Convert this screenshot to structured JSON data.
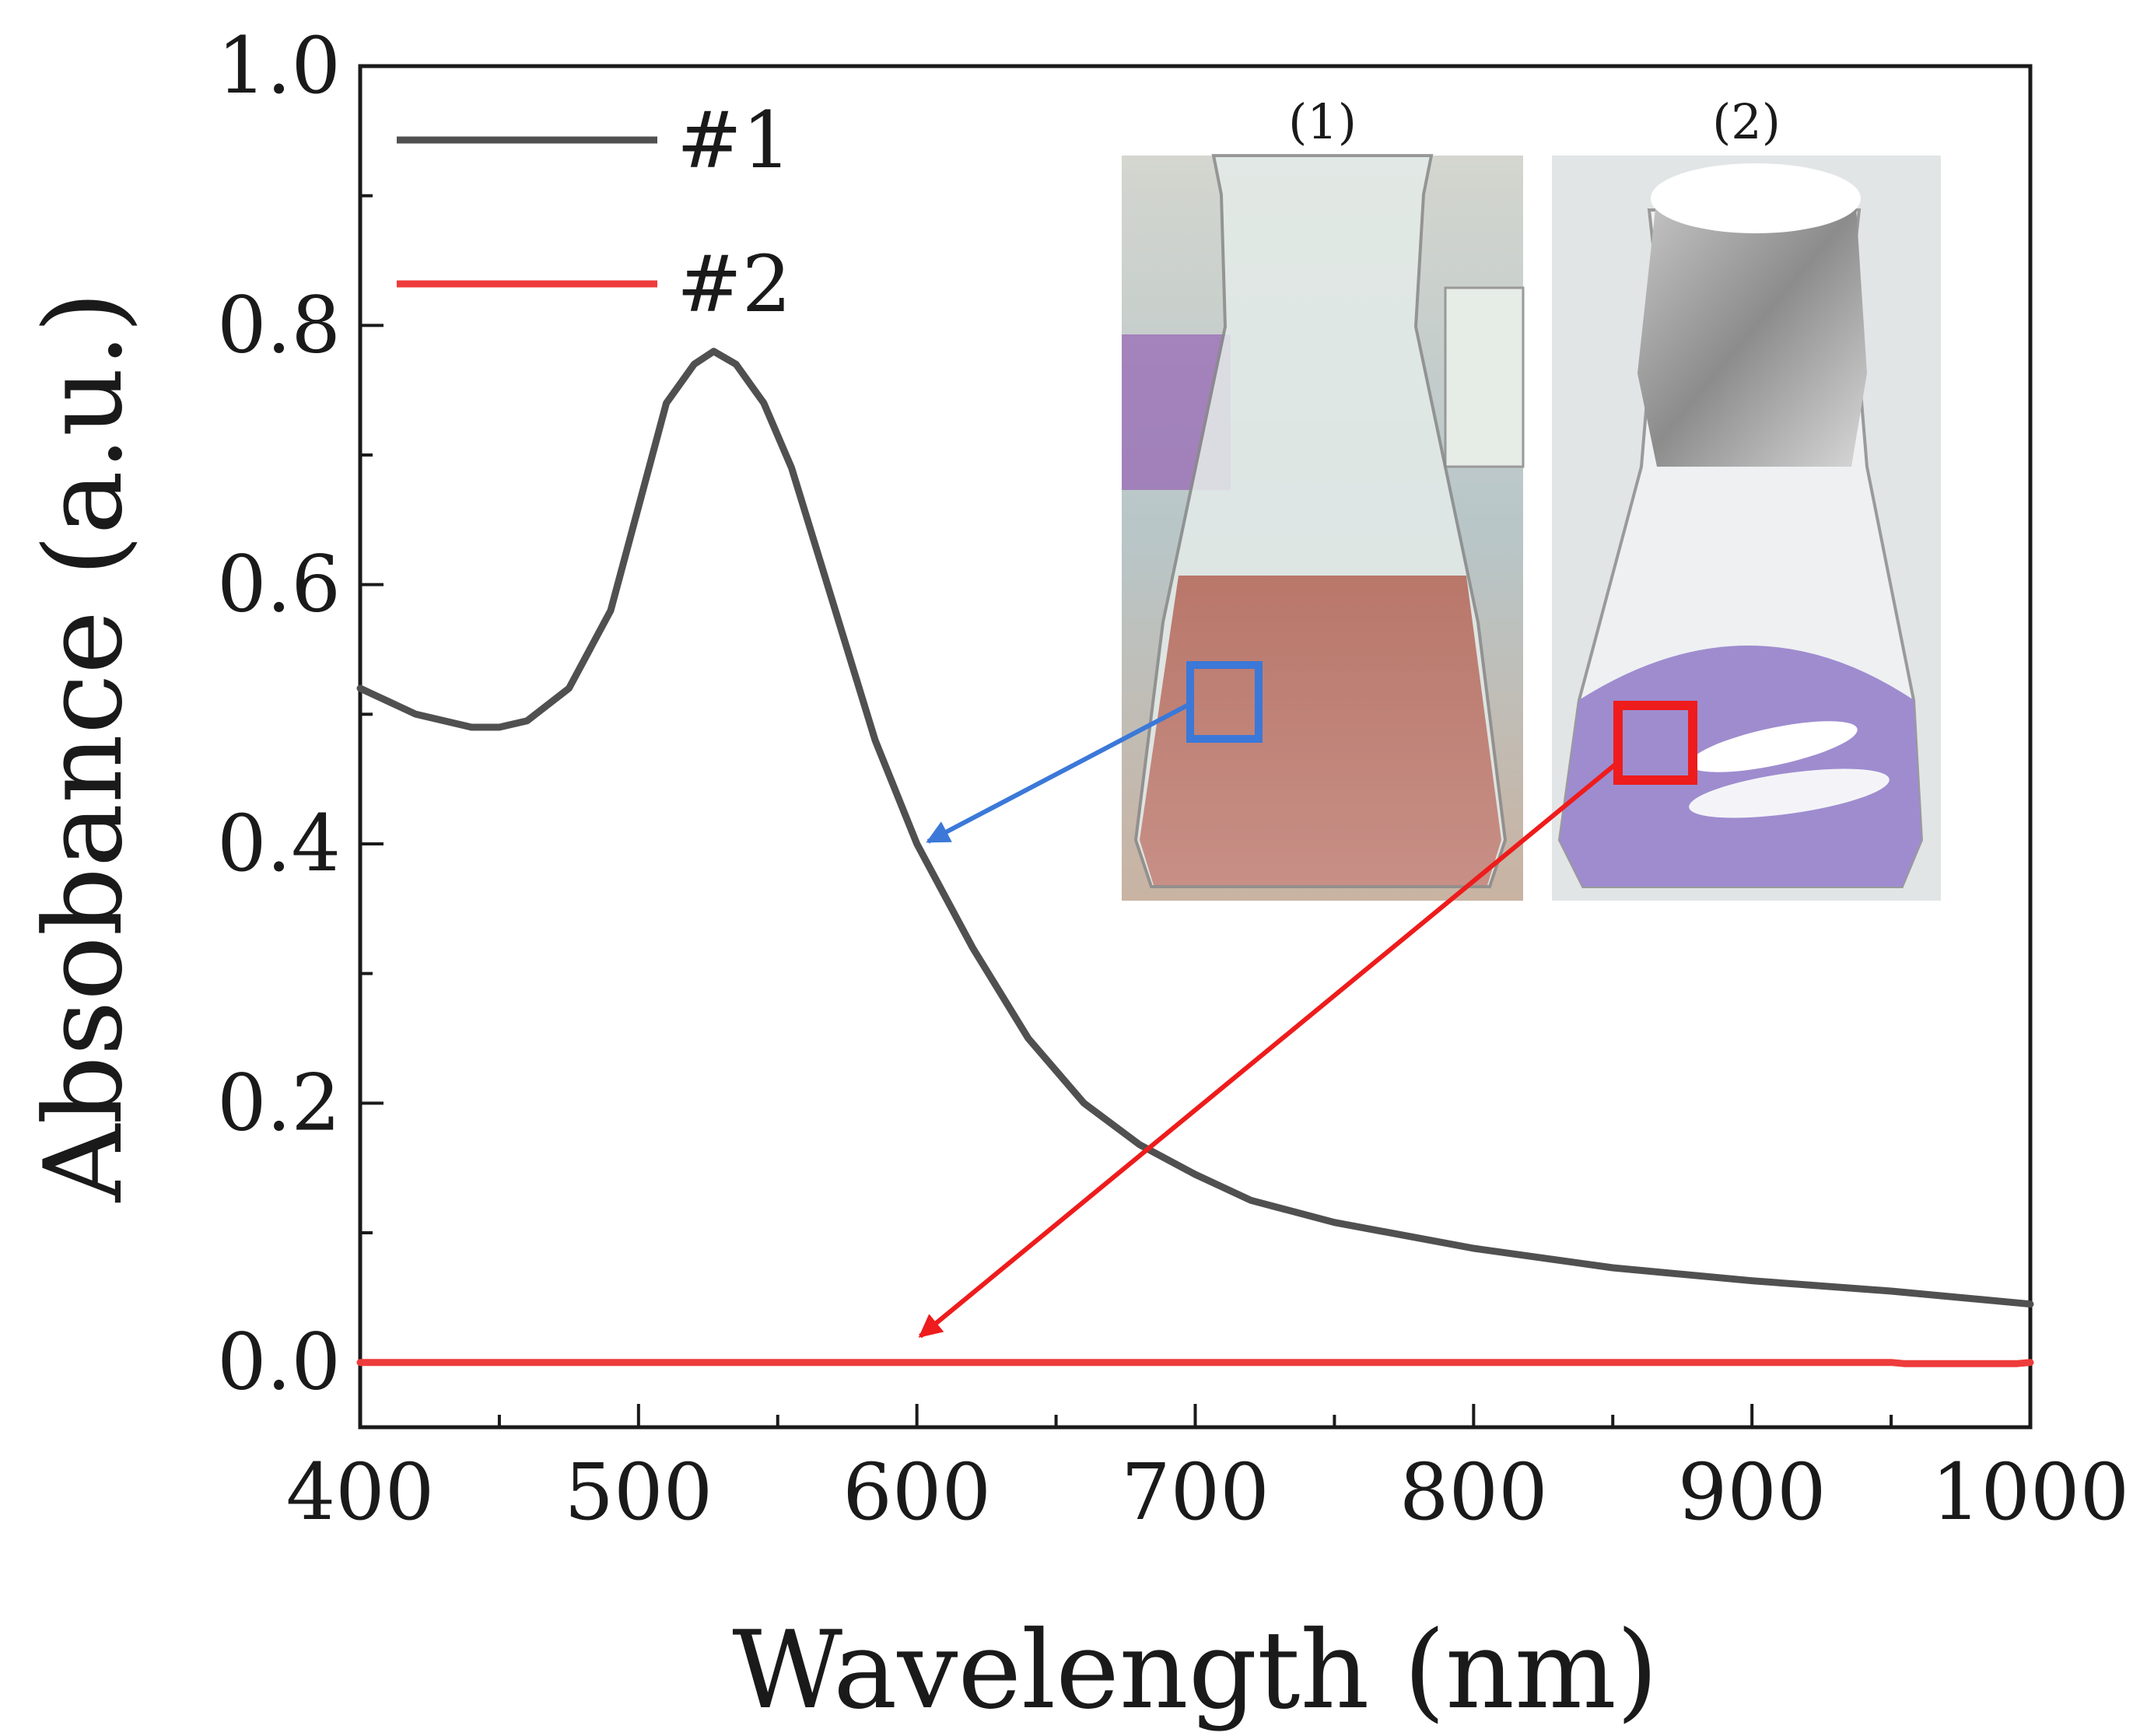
{
  "chart_data": {
    "type": "line",
    "title": "",
    "xlabel": "Wavelength (nm)",
    "ylabel": "Absobance (a.u.)",
    "xlim": [
      400,
      1000
    ],
    "ylim": [
      -0.05,
      1.0
    ],
    "xticks": [
      400,
      500,
      600,
      700,
      800,
      900,
      1000
    ],
    "xtick_labels": [
      "400",
      "500",
      "600",
      "700",
      "800",
      "900",
      "1000"
    ],
    "yticks": [
      0.0,
      0.2,
      0.4,
      0.6,
      0.8,
      1.0
    ],
    "ytick_labels": [
      "0.0",
      "0.2",
      "0.4",
      "0.6",
      "0.8",
      "1.0"
    ],
    "grid": false,
    "legend_position": "top-left",
    "series": [
      {
        "name": "#1",
        "color": "#505050",
        "x": [
          400,
          420,
          440,
          450,
          460,
          475,
          490,
          500,
          510,
          520,
          527,
          535,
          545,
          555,
          565,
          575,
          585,
          600,
          620,
          640,
          660,
          680,
          700,
          720,
          750,
          800,
          850,
          900,
          950,
          1000
        ],
        "y": [
          0.52,
          0.5,
          0.49,
          0.49,
          0.495,
          0.52,
          0.58,
          0.66,
          0.74,
          0.77,
          0.78,
          0.77,
          0.74,
          0.69,
          0.62,
          0.55,
          0.48,
          0.4,
          0.32,
          0.25,
          0.2,
          0.168,
          0.145,
          0.125,
          0.108,
          0.088,
          0.073,
          0.063,
          0.055,
          0.045
        ]
      },
      {
        "name": "#2",
        "color": "#ee3b3b",
        "x": [
          400,
          950,
          955,
          995,
          1000
        ],
        "y": [
          0.0,
          0.0,
          -0.001,
          -0.001,
          0.0
        ]
      }
    ],
    "annotations": [
      "(1)",
      "(2)"
    ]
  }
}
